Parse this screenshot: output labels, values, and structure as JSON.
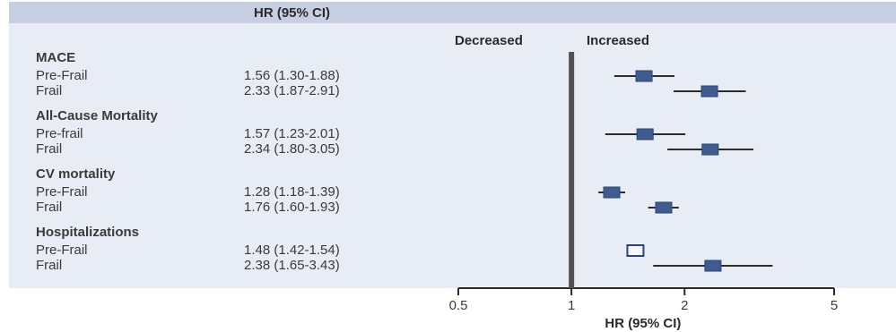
{
  "header": {
    "column_title": "HR (95% CI)"
  },
  "chart_data": {
    "type": "forest",
    "direction_labels": {
      "left": "Decreased",
      "right": "Increased"
    },
    "xlabel": "HR (95% CI)",
    "x_scale": "log",
    "xlim": [
      0.5,
      5
    ],
    "x_ticks": [
      "0.5",
      "1",
      "2",
      "5"
    ],
    "reference_line": 1,
    "groups": [
      {
        "name": "MACE",
        "rows": [
          {
            "label": "Pre-Frail",
            "ci_text": "1.56 (1.30-1.88)",
            "hr": 1.56,
            "lo": 1.3,
            "hi": 1.88
          },
          {
            "label": "Frail",
            "ci_text": "2.33 (1.87-2.91)",
            "hr": 2.33,
            "lo": 1.87,
            "hi": 2.91
          }
        ]
      },
      {
        "name": "All-Cause Mortality",
        "rows": [
          {
            "label": "Pre-frail",
            "ci_text": "1.57 (1.23-2.01)",
            "hr": 1.57,
            "lo": 1.23,
            "hi": 2.01
          },
          {
            "label": "Frail",
            "ci_text": "2.34 (1.80-3.05)",
            "hr": 2.34,
            "lo": 1.8,
            "hi": 3.05
          }
        ]
      },
      {
        "name": "CV mortality",
        "rows": [
          {
            "label": "Pre-Frail",
            "ci_text": "1.28 (1.18-1.39)",
            "hr": 1.28,
            "lo": 1.18,
            "hi": 1.39
          },
          {
            "label": "Frail",
            "ci_text": "1.76 (1.60-1.93)",
            "hr": 1.76,
            "lo": 1.6,
            "hi": 1.93
          }
        ]
      },
      {
        "name": "Hospitalizations",
        "rows": [
          {
            "label": "Pre-Frail",
            "ci_text": "1.48 (1.42-1.54)",
            "hr": 1.48,
            "lo": 1.42,
            "hi": 1.54,
            "marker": "hollow"
          },
          {
            "label": "Frail",
            "ci_text": "2.38 (1.65-3.43)",
            "hr": 2.38,
            "lo": 1.65,
            "hi": 3.43
          }
        ]
      }
    ],
    "colors": {
      "header_band": "#c7d0e2",
      "panel": "#e8edf5",
      "marker_fill": "#3f5b8f",
      "marker_hollow_fill": "#f4f7fb",
      "marker_stroke": "#2b4473",
      "line": "#2b2b2b",
      "reference_line": "#505050"
    }
  }
}
